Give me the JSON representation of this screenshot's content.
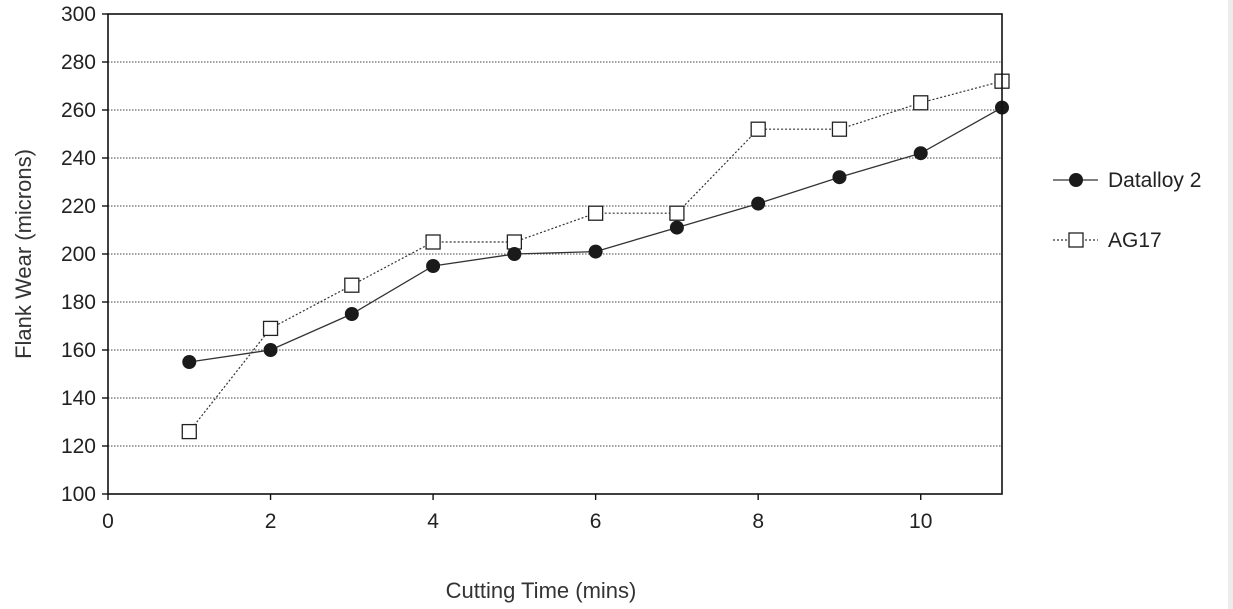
{
  "chart_data": {
    "type": "line",
    "title": "",
    "xlabel": "Cutting Time (mins)",
    "ylabel": "Flank Wear (microns)",
    "xlim": [
      0,
      11
    ],
    "ylim": [
      100,
      300
    ],
    "xticks": [
      0,
      2,
      4,
      6,
      8,
      10
    ],
    "yticks": [
      100,
      120,
      140,
      160,
      180,
      200,
      220,
      240,
      260,
      280,
      300
    ],
    "grid": "horizontal dotted",
    "legend_position": "right",
    "series": [
      {
        "name": "Datalloy 2",
        "marker": "filled-circle",
        "line": "solid",
        "x": [
          1,
          2,
          3,
          4,
          5,
          6,
          7,
          8,
          9,
          10,
          11
        ],
        "y": [
          155,
          160,
          175,
          195,
          200,
          201,
          211,
          221,
          232,
          242,
          261
        ]
      },
      {
        "name": "AG17",
        "marker": "open-square",
        "line": "dotted",
        "x": [
          1,
          2,
          3,
          4,
          5,
          6,
          7,
          8,
          9,
          10,
          11
        ],
        "y": [
          126,
          169,
          187,
          205,
          205,
          217,
          217,
          252,
          252,
          263,
          272
        ]
      }
    ]
  }
}
